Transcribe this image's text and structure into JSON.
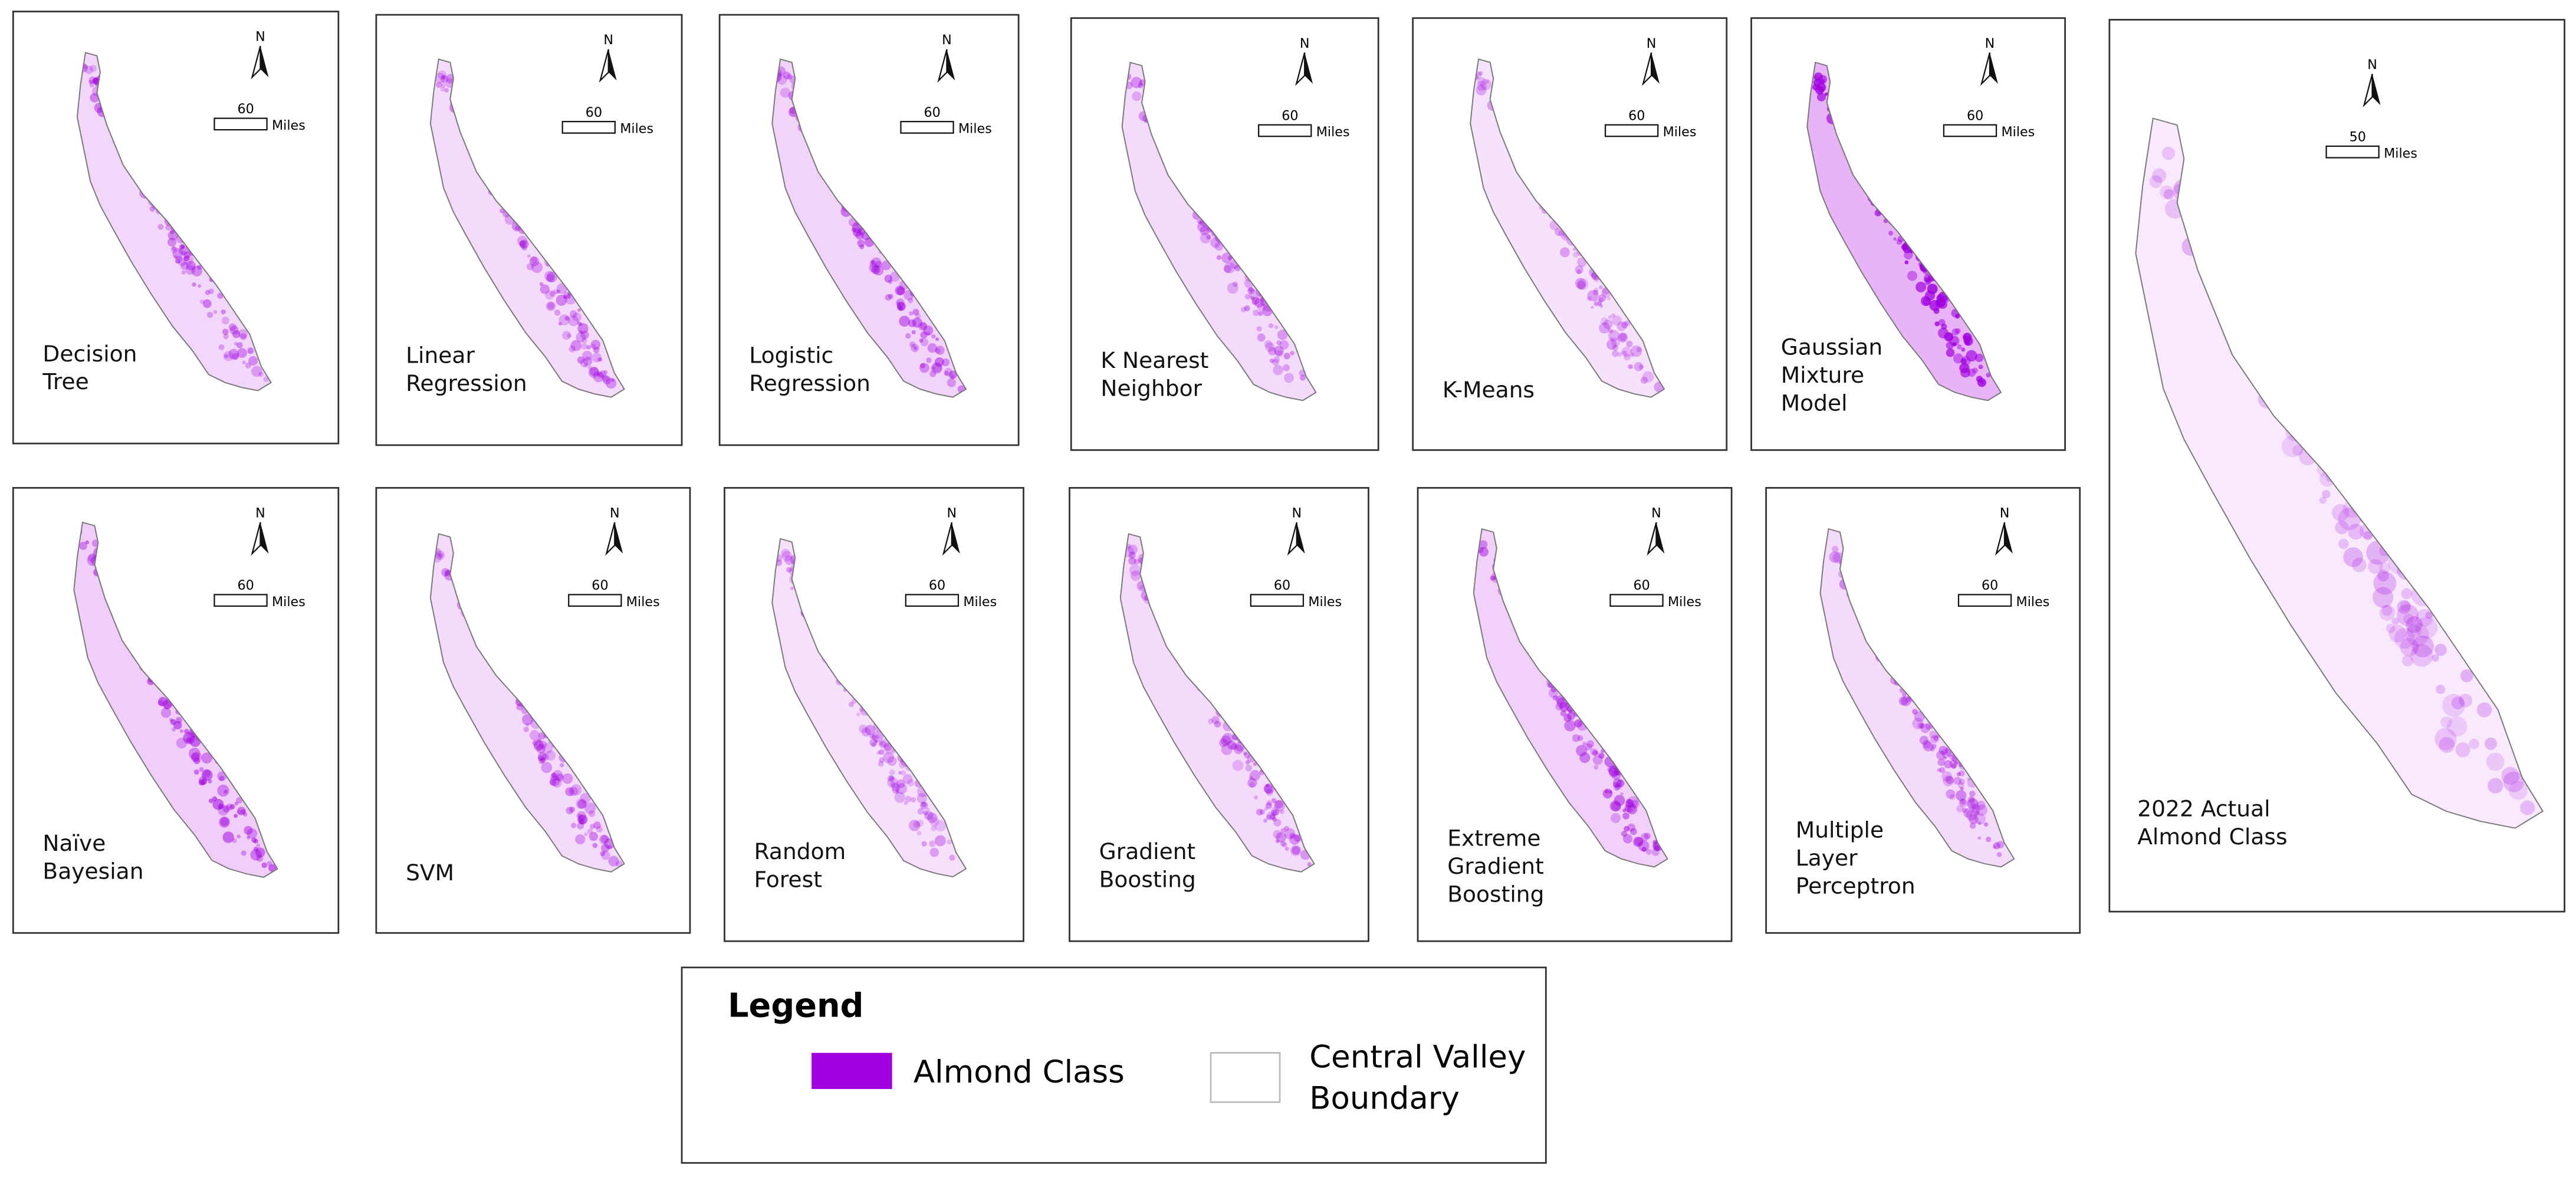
{
  "panels": [
    {
      "label": [
        "Decision",
        "Tree"
      ],
      "north": "N",
      "scale": 60,
      "unit": "Miles"
    },
    {
      "label": [
        "Linear",
        "Regression"
      ],
      "north": "N",
      "scale": 60,
      "unit": "Miles"
    },
    {
      "label": [
        "Logistic",
        "Regression"
      ],
      "north": "N",
      "scale": 60,
      "unit": "Miles"
    },
    {
      "label": [
        "K Nearest",
        "Neighbor"
      ],
      "north": "N",
      "scale": 60,
      "unit": "Miles"
    },
    {
      "label": [
        "K-Means"
      ],
      "north": "N",
      "scale": 60,
      "unit": "Miles"
    },
    {
      "label": [
        "Gaussian",
        "Mixture",
        "Model"
      ],
      "north": "N",
      "scale": 60,
      "unit": "Miles"
    },
    {
      "label": [
        "2022 Actual",
        "Almond Class"
      ],
      "north": "N",
      "scale": 50,
      "unit": "Miles"
    },
    {
      "label": [
        "Naïve",
        "Bayesian"
      ],
      "north": "N",
      "scale": 60,
      "unit": "Miles"
    },
    {
      "label": [
        "SVM"
      ],
      "north": "N",
      "scale": 60,
      "unit": "Miles"
    },
    {
      "label": [
        "Random",
        "Forest"
      ],
      "north": "N",
      "scale": 60,
      "unit": "Miles"
    },
    {
      "label": [
        "Gradient",
        "Boosting"
      ],
      "north": "N",
      "scale": 60,
      "unit": "Miles"
    },
    {
      "label": [
        "Extreme",
        "Gradient",
        "Boosting"
      ],
      "north": "N",
      "scale": 60,
      "unit": "Miles"
    },
    {
      "label": [
        "Multiple",
        "Layer",
        "Perceptron"
      ],
      "north": "N",
      "scale": 60,
      "unit": "Miles"
    }
  ],
  "legend": {
    "title": "Legend",
    "items": [
      {
        "label": [
          "Almond Class"
        ]
      },
      {
        "label": [
          "Central Valley",
          "Boundary"
        ]
      }
    ]
  }
}
